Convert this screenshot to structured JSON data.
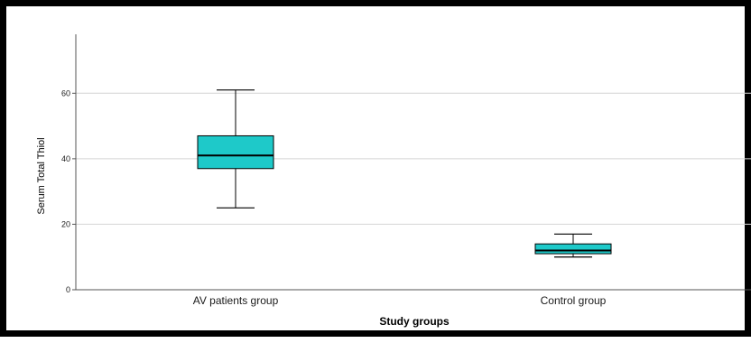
{
  "chart_data": {
    "type": "box",
    "xlabel": "Study groups",
    "ylabel": "Serum Total Thiol",
    "ylim": [
      0,
      78
    ],
    "yticks": [
      0,
      20,
      40,
      60
    ],
    "grid": true,
    "categories": [
      "AV patients group",
      "Control group"
    ],
    "boxes": [
      {
        "category": "AV patients group",
        "min": 25,
        "q1": 37,
        "median": 41,
        "q3": 47,
        "max": 61
      },
      {
        "category": "Control group",
        "min": 10,
        "q1": 11,
        "median": 12,
        "q3": 14,
        "max": 17
      }
    ],
    "colors": {
      "box_fill": "#1ec9c9",
      "grid": "#d4d4d4",
      "axis": "#555555"
    }
  }
}
